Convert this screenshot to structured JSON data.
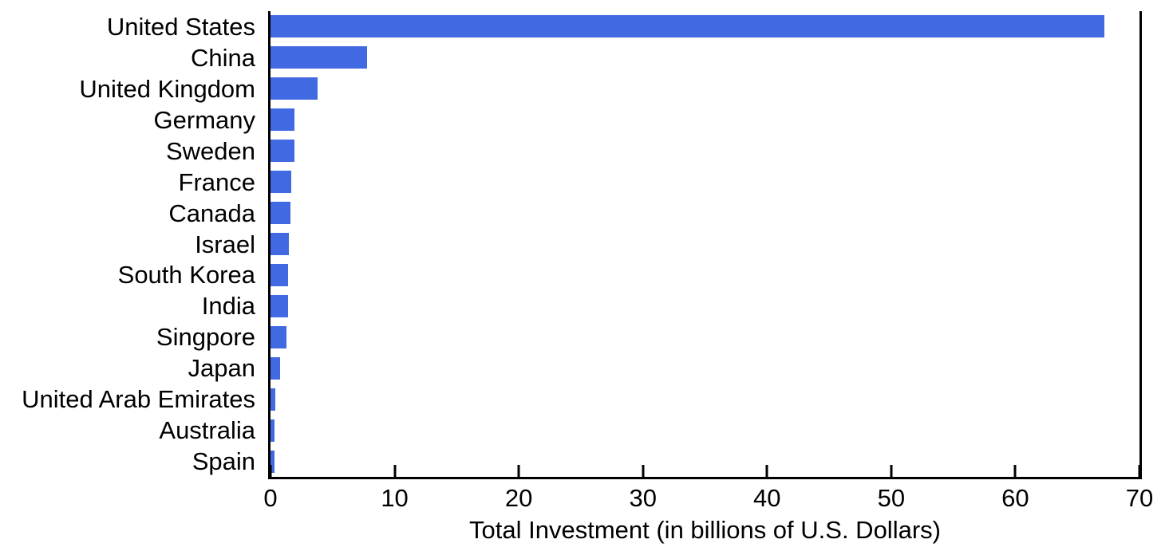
{
  "chart_data": {
    "type": "bar",
    "orientation": "horizontal",
    "title": "",
    "xlabel": "Total Investment (in billions of U.S. Dollars)",
    "ylabel": "",
    "xlim": [
      0,
      70
    ],
    "xticks": [
      0,
      10,
      20,
      30,
      40,
      50,
      60,
      70
    ],
    "categories": [
      "United States",
      "China",
      "United Kingdom",
      "Germany",
      "Sweden",
      "France",
      "Canada",
      "Israel",
      "South Korea",
      "India",
      "Singpore",
      "Japan",
      "United Arab Emirates",
      "Australia",
      "Spain"
    ],
    "values": [
      67.2,
      7.8,
      3.8,
      1.9,
      1.9,
      1.7,
      1.6,
      1.5,
      1.4,
      1.4,
      1.3,
      0.8,
      0.4,
      0.3,
      0.3
    ],
    "grid": false,
    "legend": "none",
    "colors": {
      "bar": "#4169E1",
      "axis": "#000000",
      "text": "#000000",
      "background": "#FFFFFF"
    }
  }
}
